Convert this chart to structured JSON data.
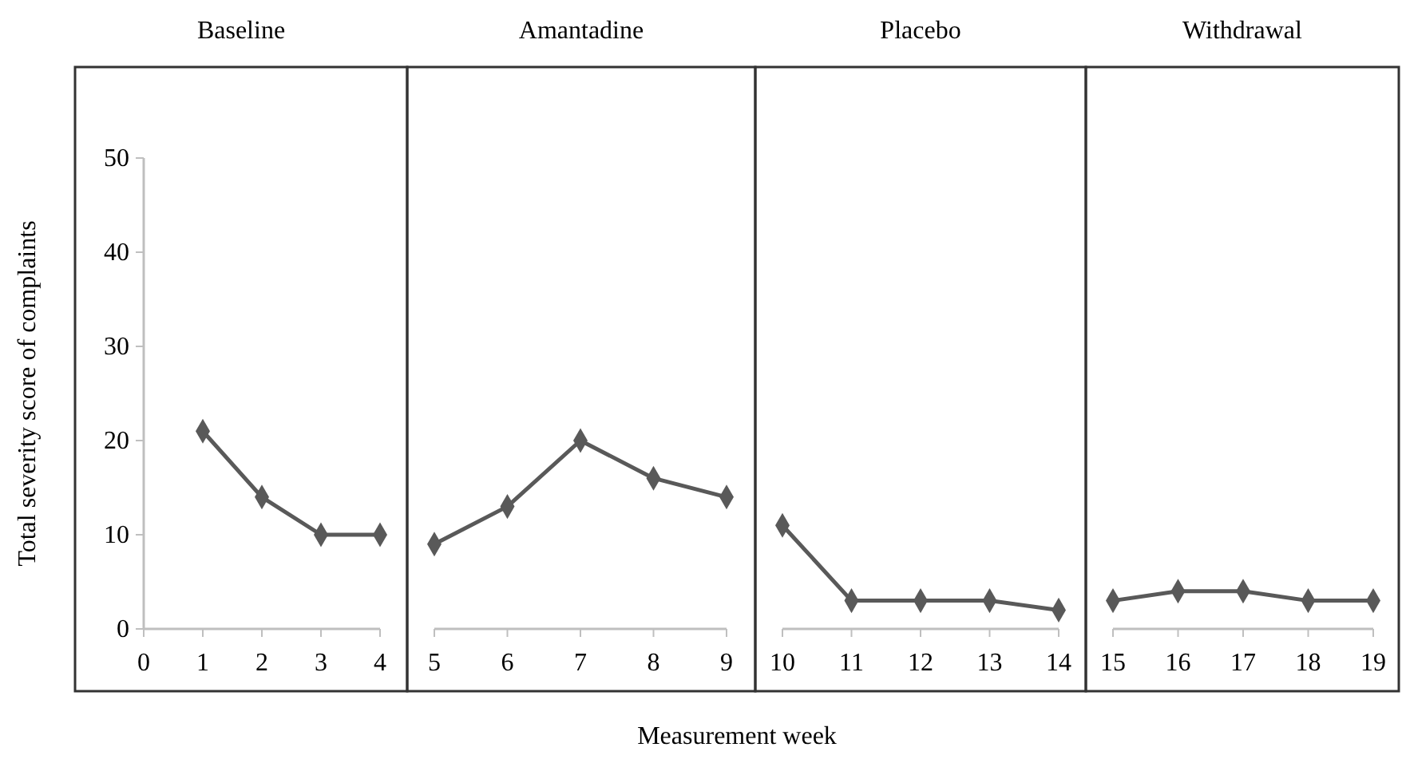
{
  "chart_data": [
    {
      "type": "line",
      "title": "Baseline",
      "ylabel": "Total severity score of complaints",
      "x": [
        1,
        2,
        3,
        4
      ],
      "values": [
        21,
        14,
        10,
        10
      ],
      "color": "#595959",
      "marker": "diamond",
      "xlim": [
        0,
        4
      ],
      "xticks": [
        0,
        1,
        2,
        3,
        4
      ],
      "ylim": [
        0,
        50
      ],
      "yticks": [
        0,
        10,
        20,
        30,
        40,
        50
      ]
    },
    {
      "type": "line",
      "title": "Amantadine",
      "xlabel": "Measurement week",
      "x": [
        5,
        6,
        7,
        8,
        9
      ],
      "values": [
        9,
        13,
        20,
        16,
        14
      ],
      "color": "#595959",
      "marker": "diamond",
      "xlim": [
        5,
        9
      ],
      "xticks": [
        5,
        6,
        7,
        8,
        9
      ],
      "ylim": [
        0,
        50
      ],
      "tick_labels": "x"
    },
    {
      "type": "line",
      "title": "Placebo",
      "x": [
        10,
        11,
        12,
        13,
        14
      ],
      "values": [
        11,
        3,
        3,
        3,
        2
      ],
      "color": "#595959",
      "marker": "diamond",
      "xlim": [
        10,
        14
      ],
      "xticks": [
        10,
        11,
        12,
        13,
        14
      ],
      "ylim": [
        0,
        50
      ],
      "tick_labels": "x"
    },
    {
      "type": "line",
      "title": "Withdrawal",
      "x": [
        15,
        16,
        17,
        18,
        19
      ],
      "values": [
        3,
        4,
        4,
        3,
        3
      ],
      "color": "#595959",
      "marker": "diamond",
      "xlim": [
        15,
        19
      ],
      "xticks": [
        15,
        16,
        17,
        18,
        19
      ],
      "ylim": [
        0,
        50
      ],
      "tick_labels": "x"
    }
  ]
}
